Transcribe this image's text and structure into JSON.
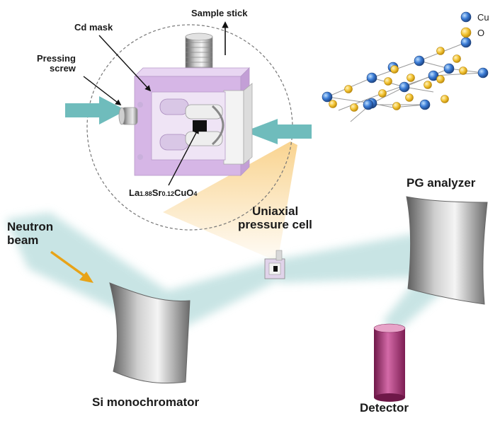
{
  "labels": {
    "sample_stick": "Sample stick",
    "cd_mask": "Cd mask",
    "pressing_screw": [
      "Pressing",
      "screw"
    ],
    "sample": {
      "parts": [
        {
          "text": "La",
          "sub": false
        },
        {
          "text": "1.88",
          "sub": true
        },
        {
          "text": "Sr",
          "sub": false
        },
        {
          "text": "0.12",
          "sub": true
        },
        {
          "text": "CuO",
          "sub": false
        },
        {
          "text": "4",
          "sub": true
        }
      ]
    },
    "uniaxial_cell": [
      "Uniaxial",
      "pressure cell"
    ],
    "neutron_beam": [
      "Neutron",
      "beam"
    ],
    "pg_analyzer": "PG analyzer",
    "si_monochromator": "Si monochromator",
    "detector": "Detector"
  },
  "legend": [
    {
      "label": "Cu",
      "color": "#3a7bd5"
    },
    {
      "label": "O",
      "color": "#f2c230"
    }
  ],
  "colors": {
    "beam": "#bfe0e0",
    "arrow": "#6fbcbc",
    "mask": "#d6b6e6",
    "neutron_arrow": "#e8a317",
    "detector": "#b0377a",
    "zoom_cone": "#f7c56a"
  }
}
